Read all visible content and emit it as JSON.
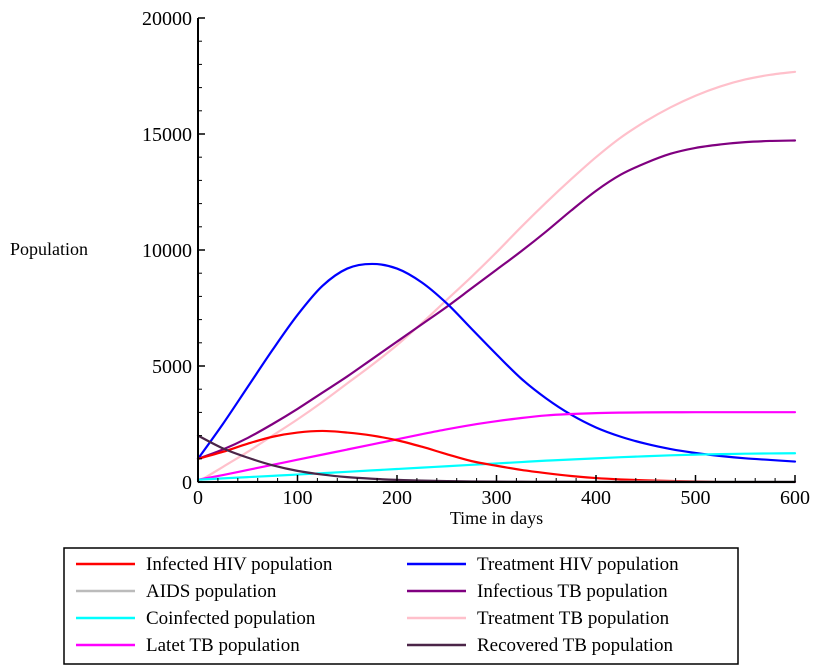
{
  "chart_data": {
    "type": "line",
    "title": "",
    "xlabel": "Time in days",
    "ylabel": "Population",
    "xlim": [
      0,
      600
    ],
    "ylim": [
      0,
      20000
    ],
    "xticks": [
      0,
      100,
      200,
      300,
      400,
      500,
      600
    ],
    "yticks": [
      0,
      5000,
      10000,
      15000,
      20000
    ],
    "grid": false,
    "legend_position": "bottom",
    "x": [
      0,
      25,
      50,
      75,
      100,
      125,
      150,
      175,
      200,
      225,
      250,
      275,
      300,
      325,
      350,
      375,
      400,
      425,
      450,
      475,
      500,
      525,
      550,
      575,
      600
    ],
    "series": [
      {
        "name": "Infected HIV population",
        "color": "#ff0000",
        "values": [
          1000,
          1300,
          1650,
          1950,
          2130,
          2200,
          2130,
          2000,
          1800,
          1520,
          1200,
          900,
          700,
          520,
          380,
          260,
          170,
          110,
          70,
          45,
          30,
          20,
          12,
          8,
          5
        ]
      },
      {
        "name": "Treatment HIV population",
        "color": "#0000ff",
        "values": [
          1000,
          2500,
          4100,
          5700,
          7200,
          8450,
          9200,
          9400,
          9200,
          8600,
          7700,
          6600,
          5500,
          4450,
          3600,
          2900,
          2350,
          1950,
          1650,
          1420,
          1250,
          1120,
          1020,
          950,
          880
        ]
      },
      {
        "name": "AIDS population",
        "color": "#bbbbbb",
        "values": [
          0,
          2,
          4,
          6,
          8,
          10,
          12,
          14,
          15,
          16,
          17,
          17,
          18,
          18,
          18,
          18,
          18,
          18,
          18,
          18,
          18,
          18,
          18,
          18,
          18
        ]
      },
      {
        "name": "Infectious TB population",
        "color": "#800080",
        "values": [
          1000,
          1400,
          1900,
          2500,
          3150,
          3850,
          4550,
          5300,
          6050,
          6800,
          7550,
          8350,
          9150,
          9950,
          10800,
          11700,
          12550,
          13250,
          13750,
          14150,
          14400,
          14550,
          14650,
          14700,
          14720
        ]
      },
      {
        "name": "Coinfected population",
        "color": "#00ffff",
        "values": [
          100,
          155,
          210,
          265,
          320,
          380,
          440,
          500,
          560,
          620,
          680,
          740,
          800,
          860,
          920,
          970,
          1020,
          1070,
          1110,
          1150,
          1180,
          1200,
          1220,
          1230,
          1240
        ]
      },
      {
        "name": "Treatment TB population",
        "color": "#ffc0cb",
        "values": [
          0,
          650,
          1300,
          2000,
          2700,
          3450,
          4250,
          5050,
          5900,
          6850,
          7850,
          8850,
          9900,
          11000,
          12050,
          13050,
          14000,
          14850,
          15550,
          16150,
          16650,
          17050,
          17350,
          17550,
          17680
        ]
      },
      {
        "name": "Latet TB population",
        "color": "#ff00ff",
        "values": [
          100,
          300,
          520,
          740,
          960,
          1180,
          1400,
          1620,
          1840,
          2060,
          2270,
          2460,
          2620,
          2760,
          2870,
          2930,
          2970,
          2990,
          3000,
          3005,
          3010,
          3010,
          3010,
          3010,
          3010
        ]
      },
      {
        "name": "Recovered TB population",
        "color": "#4b2548",
        "values": [
          2000,
          1450,
          1050,
          720,
          480,
          320,
          210,
          140,
          90,
          60,
          40,
          25,
          15,
          10,
          6,
          4,
          2,
          1,
          1,
          0,
          0,
          0,
          0,
          0,
          0
        ]
      }
    ],
    "legend_order": [
      "Infected HIV population",
      "Treatment HIV population",
      "AIDS population",
      "Infectious TB population",
      "Coinfected population",
      "Treatment TB population",
      "Latet TB population",
      "Recovered TB population"
    ]
  }
}
